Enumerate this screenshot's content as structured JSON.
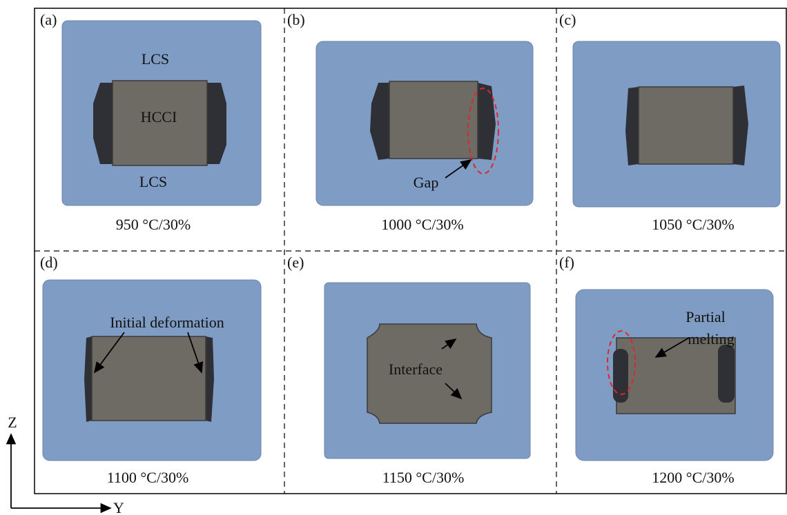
{
  "panels": [
    {
      "label": "(a)",
      "caption": "950 °C/30%",
      "annotations": [
        "LCS",
        "HCCI",
        "LCS"
      ]
    },
    {
      "label": "(b)",
      "caption": "1000 °C/30%",
      "annotations": [
        "Gap"
      ]
    },
    {
      "label": "(c)",
      "caption": "1050 °C/30%"
    },
    {
      "label": "(d)",
      "caption": "1100 °C/30%",
      "annotations": [
        "Initial deformation"
      ]
    },
    {
      "label": "(e)",
      "caption": "1150 °C/30%",
      "annotations": [
        "Interface"
      ]
    },
    {
      "label": "(f)",
      "caption": "1200 °C/30%",
      "annotations": [
        "Partial",
        "melting"
      ]
    }
  ],
  "axes": {
    "vertical": "Z",
    "horizontal": "Y"
  }
}
